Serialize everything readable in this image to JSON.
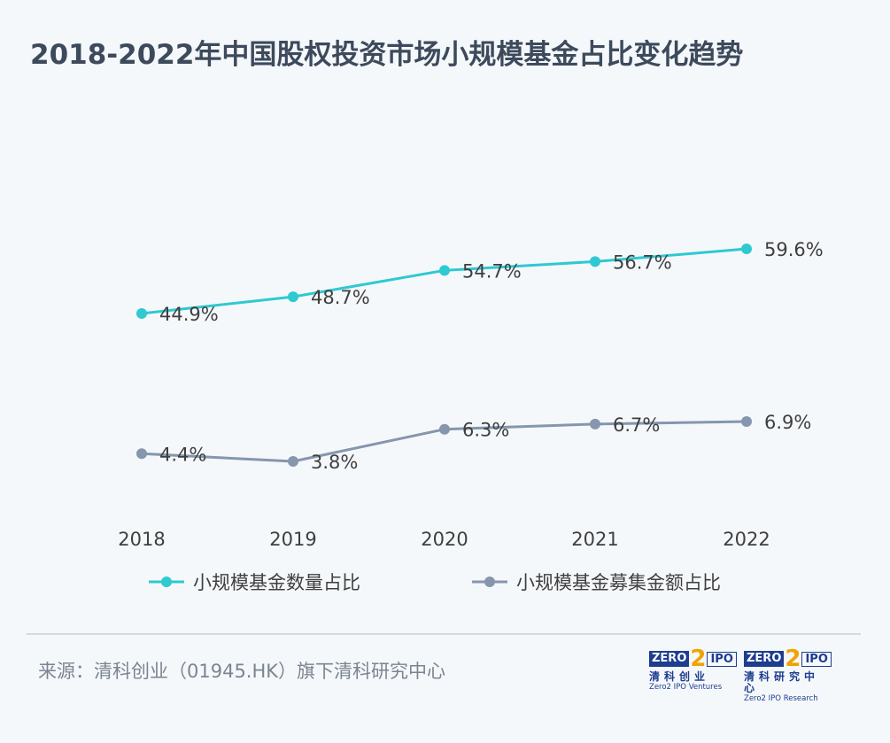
{
  "title": "2018-2022年中国股权投资市场小规模基金占比变化趋势",
  "source": "来源：清科创业（01945.HK）旗下清科研究中心",
  "logos": [
    {
      "left_word": "ZERO",
      "mid": "2",
      "right_word": "IPO",
      "cn": "清科创业",
      "en": "Zero2 IPO Ventures"
    },
    {
      "left_word": "ZERO",
      "mid": "2",
      "right_word": "IPO",
      "cn": "清科研究中心",
      "en": "Zero2 IPO Research"
    }
  ],
  "chart_data": {
    "type": "line",
    "categories": [
      "2018",
      "2019",
      "2020",
      "2021",
      "2022"
    ],
    "series": [
      {
        "name": "小规模基金数量占比",
        "values": [
          44.9,
          48.7,
          54.7,
          56.7,
          59.6
        ],
        "labels": [
          "44.9%",
          "48.7%",
          "54.7%",
          "56.7%",
          "59.6%"
        ],
        "color": "#2ec9d1"
      },
      {
        "name": "小规模基金募集金额占比",
        "values": [
          4.4,
          3.8,
          6.3,
          6.7,
          6.9
        ],
        "labels": [
          "4.4%",
          "3.8%",
          "6.3%",
          "6.7%",
          "6.9%"
        ],
        "color": "#8596ad"
      }
    ],
    "legend_position": "bottom",
    "grid": false
  }
}
